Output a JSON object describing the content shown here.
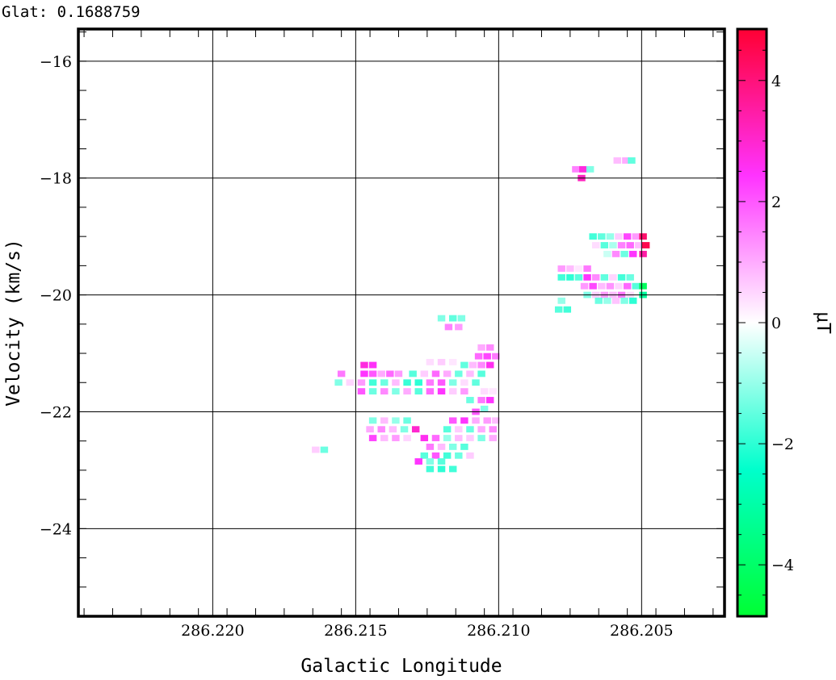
{
  "header": {
    "label": "Glat:",
    "value": "0.1688759"
  },
  "chart_data": {
    "type": "heatmap",
    "xlabel": "Galactic Longitude",
    "ylabel": "Velocity (km/s)",
    "colorbar_label": "μT",
    "xlim": [
      286.2247,
      286.2021
    ],
    "ylim": [
      -25.5,
      -15.45
    ],
    "x_ticks": [
      "286.220",
      "286.215",
      "286.210",
      "286.205"
    ],
    "x_tick_values": [
      286.22,
      286.215,
      286.21,
      286.205
    ],
    "y_ticks": [
      "−16",
      "−18",
      "−20",
      "−22",
      "−24"
    ],
    "y_tick_values": [
      -16,
      -18,
      -20,
      -22,
      -24
    ],
    "colorbar": {
      "range": [
        -4.85,
        4.85
      ],
      "ticks": [
        "4",
        "2",
        "0",
        "−2",
        "−4"
      ],
      "tick_values": [
        4,
        2,
        0,
        -2,
        -4
      ],
      "colors": [
        "#00ff33",
        "#00ffcc",
        "#ffffff",
        "#ff33ff",
        "#ff0033"
      ]
    },
    "grid": true,
    "pixel_size": {
      "dlon": 0.00025,
      "dv": 0.1
    },
    "cells": [
      [
        286.20585,
        -17.7,
        0.8
      ],
      [
        286.20555,
        -17.7,
        1.0
      ],
      [
        286.20535,
        -17.7,
        -1.5
      ],
      [
        286.2073,
        -17.85,
        1.5
      ],
      [
        286.20705,
        -17.85,
        2.8
      ],
      [
        286.2068,
        -17.85,
        -1.2
      ],
      [
        286.2071,
        -18.0,
        3.2
      ],
      [
        286.2067,
        -19.0,
        -1.8
      ],
      [
        286.2064,
        -19.0,
        -1.5
      ],
      [
        286.2061,
        -19.0,
        -1.0
      ],
      [
        286.2058,
        -19.0,
        0.6
      ],
      [
        286.2055,
        -19.0,
        2.2
      ],
      [
        286.2052,
        -19.0,
        1.2
      ],
      [
        286.20495,
        -19.0,
        4.2
      ],
      [
        286.2066,
        -19.15,
        0.4
      ],
      [
        286.2063,
        -19.15,
        -1.6
      ],
      [
        286.206,
        -19.15,
        -0.8
      ],
      [
        286.2057,
        -19.15,
        1.5
      ],
      [
        286.2054,
        -19.15,
        1.8
      ],
      [
        286.2051,
        -19.15,
        0.8
      ],
      [
        286.20485,
        -19.15,
        4.5
      ],
      [
        286.2062,
        -19.3,
        -0.5
      ],
      [
        286.2059,
        -19.3,
        1.4
      ],
      [
        286.2056,
        -19.3,
        -1.4
      ],
      [
        286.2053,
        -19.3,
        2.4
      ],
      [
        286.20495,
        -19.3,
        3.5
      ],
      [
        286.2078,
        -19.55,
        1.2
      ],
      [
        286.2075,
        -19.55,
        0.8
      ],
      [
        286.2072,
        -19.55,
        0.3
      ],
      [
        286.2069,
        -19.55,
        1.6
      ],
      [
        286.2078,
        -19.7,
        -1.8
      ],
      [
        286.2075,
        -19.7,
        -2.0
      ],
      [
        286.2072,
        -19.7,
        -1.6
      ],
      [
        286.2069,
        -19.7,
        2.4
      ],
      [
        286.2066,
        -19.7,
        1.4
      ],
      [
        286.2063,
        -19.7,
        -1.5
      ],
      [
        286.206,
        -19.7,
        0.5
      ],
      [
        286.2057,
        -19.7,
        -1.8
      ],
      [
        286.2054,
        -19.7,
        -1.4
      ],
      [
        286.207,
        -19.85,
        1.2
      ],
      [
        286.2067,
        -19.85,
        2.2
      ],
      [
        286.2064,
        -19.85,
        0.8
      ],
      [
        286.2061,
        -19.85,
        1.3
      ],
      [
        286.2058,
        -19.85,
        0.5
      ],
      [
        286.2055,
        -19.85,
        1.8
      ],
      [
        286.2052,
        -19.85,
        -1.6
      ],
      [
        286.20495,
        -19.85,
        -4.2
      ],
      [
        286.2069,
        -20.0,
        -1.2
      ],
      [
        286.2066,
        -20.0,
        0.6
      ],
      [
        286.2063,
        -20.0,
        1.2
      ],
      [
        286.206,
        -20.0,
        0.8
      ],
      [
        286.2057,
        -20.0,
        1.6
      ],
      [
        286.2054,
        -20.0,
        0.4
      ],
      [
        286.20495,
        -20.0,
        -3.2
      ],
      [
        286.2065,
        -20.1,
        -1.4
      ],
      [
        286.2062,
        -20.1,
        -1.0
      ],
      [
        286.2059,
        -20.1,
        0.7
      ],
      [
        286.2056,
        -20.1,
        -1.2
      ],
      [
        286.2053,
        -20.1,
        -2.0
      ],
      [
        286.2078,
        -20.1,
        -1.0
      ],
      [
        286.2079,
        -20.25,
        -1.6
      ],
      [
        286.2076,
        -20.25,
        -1.8
      ],
      [
        286.212,
        -20.4,
        -1.2
      ],
      [
        286.2116,
        -20.4,
        -1.5
      ],
      [
        286.2113,
        -20.4,
        -1.2
      ],
      [
        286.21175,
        -20.55,
        1.5
      ],
      [
        286.2114,
        -20.55,
        1.2
      ],
      [
        286.2106,
        -20.9,
        1.0
      ],
      [
        286.2103,
        -20.9,
        1.4
      ],
      [
        286.2107,
        -21.05,
        1.8
      ],
      [
        286.2104,
        -21.05,
        2.2
      ],
      [
        286.2101,
        -21.05,
        1.6
      ],
      [
        286.2124,
        -21.15,
        0.4
      ],
      [
        286.212,
        -21.15,
        0.6
      ],
      [
        286.2116,
        -21.15,
        0.3
      ],
      [
        286.2147,
        -21.2,
        2.8
      ],
      [
        286.2144,
        -21.2,
        2.5
      ],
      [
        286.2112,
        -21.2,
        -1.5
      ],
      [
        286.2109,
        -21.2,
        0.8
      ],
      [
        286.2106,
        -21.2,
        1.4
      ],
      [
        286.2103,
        -21.2,
        2.6
      ],
      [
        286.2155,
        -21.35,
        1.6
      ],
      [
        286.2147,
        -21.35,
        2.4
      ],
      [
        286.2144,
        -21.35,
        2.0
      ],
      [
        286.2141,
        -21.35,
        1.0
      ],
      [
        286.2138,
        -21.35,
        1.8
      ],
      [
        286.2135,
        -21.35,
        1.2
      ],
      [
        286.213,
        -21.35,
        -1.6
      ],
      [
        286.2126,
        -21.35,
        0.6
      ],
      [
        286.2122,
        -21.35,
        1.8
      ],
      [
        286.2118,
        -21.35,
        1.0
      ],
      [
        286.2114,
        -21.35,
        -1.4
      ],
      [
        286.211,
        -21.35,
        0.8
      ],
      [
        286.2106,
        -21.35,
        -1.6
      ],
      [
        286.2156,
        -21.5,
        -1.2
      ],
      [
        286.2152,
        -21.5,
        0.5
      ],
      [
        286.2148,
        -21.5,
        1.2
      ],
      [
        286.2144,
        -21.5,
        -1.8
      ],
      [
        286.214,
        -21.5,
        -1.4
      ],
      [
        286.2136,
        -21.5,
        0.8
      ],
      [
        286.2132,
        -21.5,
        -1.9
      ],
      [
        286.2128,
        -21.5,
        -2.0
      ],
      [
        286.2124,
        -21.5,
        1.6
      ],
      [
        286.212,
        -21.5,
        2.0
      ],
      [
        286.2116,
        -21.5,
        -1.2
      ],
      [
        286.2112,
        -21.5,
        0.4
      ],
      [
        286.2108,
        -21.5,
        -1.5
      ],
      [
        286.2148,
        -21.65,
        2.0
      ],
      [
        286.2144,
        -21.65,
        -1.4
      ],
      [
        286.214,
        -21.65,
        1.4
      ],
      [
        286.2136,
        -21.65,
        -1.2
      ],
      [
        286.2132,
        -21.65,
        1.0
      ],
      [
        286.2128,
        -21.65,
        -1.6
      ],
      [
        286.2124,
        -21.65,
        1.8
      ],
      [
        286.212,
        -21.65,
        2.4
      ],
      [
        286.2116,
        -21.65,
        0.6
      ],
      [
        286.2112,
        -21.65,
        1.2
      ],
      [
        286.2105,
        -21.65,
        0.4
      ],
      [
        286.2102,
        -21.65,
        0.3
      ],
      [
        286.211,
        -21.8,
        -1.4
      ],
      [
        286.2106,
        -21.8,
        1.6
      ],
      [
        286.2103,
        -21.8,
        2.4
      ],
      [
        286.2105,
        -21.95,
        -1.2
      ],
      [
        286.2108,
        -22.0,
        2.0
      ],
      [
        286.2144,
        -22.15,
        -1.2
      ],
      [
        286.214,
        -22.15,
        0.8
      ],
      [
        286.2136,
        -22.15,
        -1.0
      ],
      [
        286.2132,
        -22.15,
        -1.4
      ],
      [
        286.2116,
        -22.15,
        2.0
      ],
      [
        286.2112,
        -22.15,
        2.4
      ],
      [
        286.2108,
        -22.15,
        1.0
      ],
      [
        286.2104,
        -22.15,
        1.2
      ],
      [
        286.2101,
        -22.15,
        0.8
      ],
      [
        286.2145,
        -22.3,
        1.0
      ],
      [
        286.2141,
        -22.3,
        1.4
      ],
      [
        286.2137,
        -22.3,
        0.8
      ],
      [
        286.2133,
        -22.3,
        -1.2
      ],
      [
        286.2129,
        -22.3,
        3.0
      ],
      [
        286.2118,
        -22.3,
        -1.6
      ],
      [
        286.2114,
        -22.3,
        0.6
      ],
      [
        286.211,
        -22.3,
        -1.4
      ],
      [
        286.2106,
        -22.3,
        1.0
      ],
      [
        286.2102,
        -22.3,
        1.4
      ],
      [
        286.2144,
        -22.45,
        2.2
      ],
      [
        286.214,
        -22.45,
        0.8
      ],
      [
        286.2136,
        -22.45,
        1.2
      ],
      [
        286.2132,
        -22.45,
        0.5
      ],
      [
        286.2126,
        -22.45,
        2.6
      ],
      [
        286.2122,
        -22.45,
        1.8
      ],
      [
        286.2118,
        -22.45,
        -1.0
      ],
      [
        286.2114,
        -22.45,
        0.8
      ],
      [
        286.211,
        -22.45,
        0.6
      ],
      [
        286.2106,
        -22.45,
        -1.2
      ],
      [
        286.2102,
        -22.45,
        1.0
      ],
      [
        286.2124,
        -22.6,
        1.6
      ],
      [
        286.212,
        -22.6,
        0.8
      ],
      [
        286.2116,
        -22.6,
        -1.2
      ],
      [
        286.2112,
        -22.6,
        -1.6
      ],
      [
        286.2164,
        -22.65,
        0.6
      ],
      [
        286.2161,
        -22.65,
        -1.4
      ],
      [
        286.2126,
        -22.75,
        -1.6
      ],
      [
        286.2122,
        -22.75,
        2.0
      ],
      [
        286.2118,
        -22.75,
        -1.8
      ],
      [
        286.2114,
        -22.75,
        -1.4
      ],
      [
        286.211,
        -22.75,
        0.6
      ],
      [
        286.2128,
        -22.85,
        2.4
      ],
      [
        286.2124,
        -22.85,
        -1.2
      ],
      [
        286.212,
        -22.85,
        -1.6
      ],
      [
        286.2124,
        -22.98,
        -1.8
      ],
      [
        286.212,
        -22.98,
        -2.0
      ],
      [
        286.2116,
        -22.98,
        -1.8
      ]
    ]
  }
}
